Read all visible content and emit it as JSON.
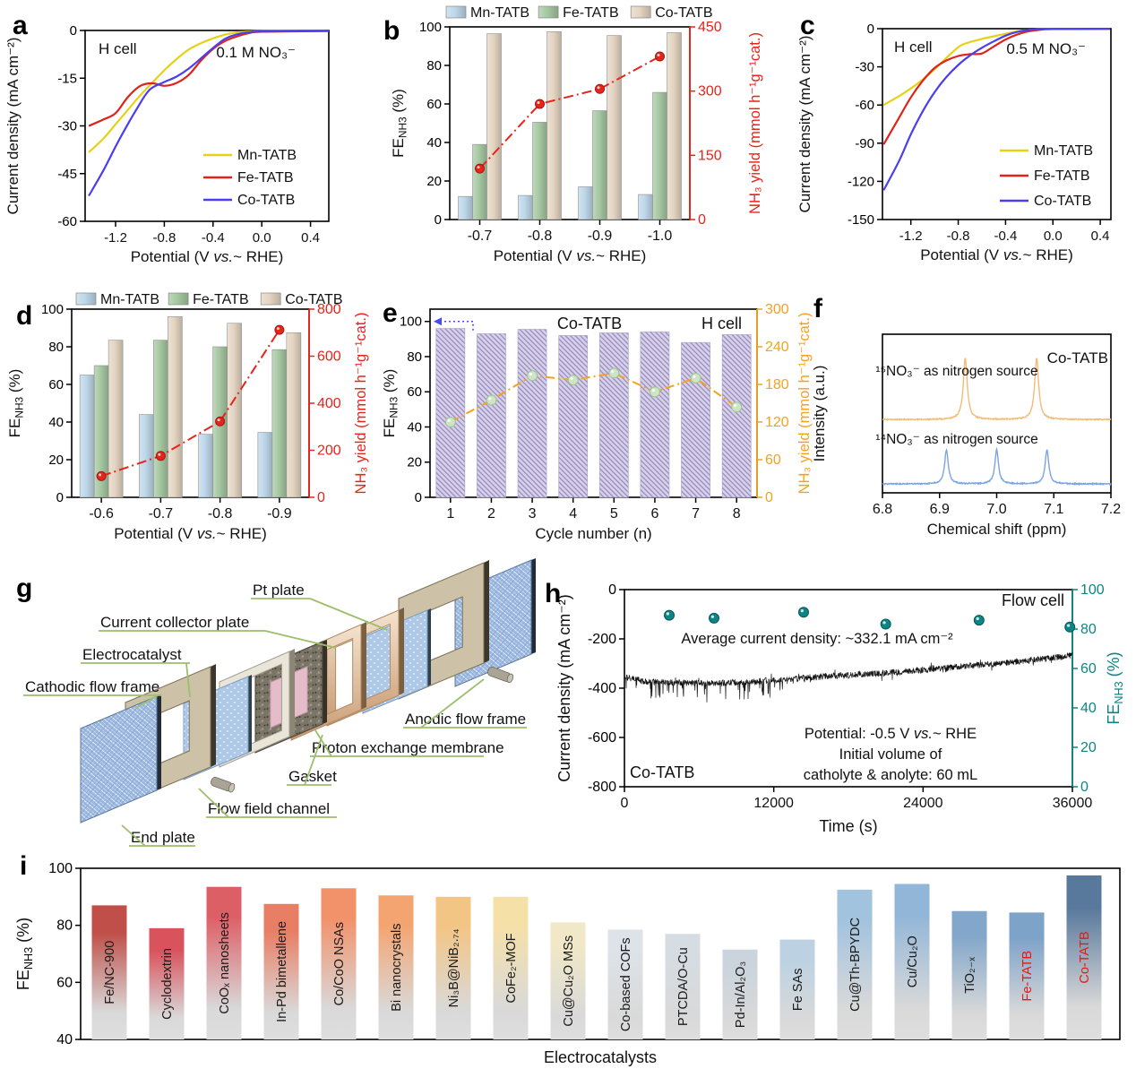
{
  "panels": {
    "a": {
      "label": "a"
    },
    "b": {
      "label": "b"
    },
    "c": {
      "label": "c"
    },
    "d": {
      "label": "d"
    },
    "e": {
      "label": "e"
    },
    "f": {
      "label": "f"
    },
    "g": {
      "label": "g"
    },
    "h": {
      "label": "h"
    },
    "i": {
      "label": "i"
    }
  },
  "colors": {
    "mn": "#e7d117",
    "fe": "#e02318",
    "co": "#4a3ff0",
    "bar_mn": "#bdd7e9",
    "bar_fe": "#a5c7a1",
    "bar_co": "#e4d4c1",
    "yield_red": "#e8231a",
    "cycle_bar": "#d8d2e8",
    "cycle_hatch": "#9d90c4",
    "cycle_line": "#f6a21c",
    "cycle_marker": "#cfe3c5",
    "cycle_arrow": "#4a4af0",
    "teal": "#0d8585",
    "nmr_15n": "#f2bc77",
    "nmr_14n": "#7aa3e8",
    "leader_green": "#9bbf6a",
    "label_red": "#e8190f"
  },
  "chart_data": [
    {
      "id": "a",
      "type": "line",
      "annotations": {
        "cell": "H cell",
        "electrolyte": "0.1 M NO₃⁻"
      },
      "xlabel": "Potential (V ~{vs.}~ RHE)",
      "ylabel": "Current density (mA cm⁻²)",
      "xlim": [
        -1.45,
        0.55
      ],
      "ylim": [
        -60,
        0
      ],
      "xticks": [
        -1.2,
        -0.8,
        -0.4,
        0,
        0.4
      ],
      "xtick_labels": [
        "-1.2",
        "-0.8",
        "-0.4",
        "0.0",
        "0.4"
      ],
      "yticks": [
        0,
        -15,
        -30,
        -45,
        -60
      ],
      "ytick_labels": [
        "0",
        "-15",
        "-30",
        "-45",
        "-60"
      ],
      "series": [
        {
          "name": "Mn-TATB",
          "color_key": "mn",
          "x": [
            -1.42,
            -1.3,
            -1.2,
            -1.1,
            -1.0,
            -0.9,
            -0.8,
            -0.7,
            -0.6,
            -0.5,
            -0.4,
            -0.3,
            -0.2,
            -0.1,
            0,
            0.55
          ],
          "y": [
            -38.3,
            -34,
            -29.5,
            -25,
            -20.5,
            -16.5,
            -12.5,
            -9,
            -6,
            -4,
            -2.5,
            -1.3,
            -0.6,
            -0.3,
            -0.2,
            -0.1
          ]
        },
        {
          "name": "Fe-TATB",
          "color_key": "fe",
          "x": [
            -1.42,
            -1.3,
            -1.2,
            -1.1,
            -1.0,
            -0.9,
            -0.8,
            -0.7,
            -0.6,
            -0.5,
            -0.4,
            -0.3,
            -0.2,
            -0.1,
            0,
            0.55
          ],
          "y": [
            -30,
            -28,
            -26,
            -21,
            -17.5,
            -16.6,
            -17.4,
            -16.5,
            -14,
            -9.5,
            -5.8,
            -3.3,
            -1.8,
            -0.8,
            -0.4,
            -0.2
          ]
        },
        {
          "name": "Co-TATB",
          "color_key": "co",
          "x": [
            -1.42,
            -1.3,
            -1.2,
            -1.1,
            -1.0,
            -0.95,
            -0.9,
            -0.8,
            -0.7,
            -0.6,
            -0.5,
            -0.4,
            -0.3,
            -0.2,
            -0.1,
            0,
            0.55
          ],
          "y": [
            -52,
            -44,
            -36.5,
            -29.5,
            -23,
            -20,
            -18,
            -16.2,
            -14.5,
            -12,
            -8.8,
            -5.5,
            -2.6,
            -1.2,
            -0.5,
            -0.3,
            -0.1
          ]
        }
      ]
    },
    {
      "id": "b",
      "type": "grouped-bar-line",
      "categories": [
        "-0.7",
        "-0.8",
        "-0.9",
        "-1.0"
      ],
      "xlabel": "Potential (V ~{vs.}~ RHE)",
      "ylabel_left": "FE_{NH3} (%)",
      "ylabel_right": "NH₃ yield (mmol h⁻¹g⁻¹cat.)",
      "ylim_left": [
        0,
        100
      ],
      "yticks_left": [
        "0",
        "20",
        "40",
        "60",
        "80",
        "100"
      ],
      "ylim_right": [
        0,
        450
      ],
      "yticks_right": [
        "0",
        "150",
        "300",
        "450"
      ],
      "legend": [
        "Mn-TATB",
        "Fe-TATB",
        "Co-TATB"
      ],
      "series": [
        {
          "name": "Mn-TATB",
          "color_key": "bar_mn",
          "values": [
            12,
            12.5,
            17,
            13
          ]
        },
        {
          "name": "Fe-TATB",
          "color_key": "bar_fe",
          "values": [
            39,
            50.5,
            56.5,
            66
          ]
        },
        {
          "name": "Co-TATB",
          "color_key": "bar_co",
          "values": [
            96.5,
            97.5,
            95.5,
            97
          ]
        }
      ],
      "yield_line": {
        "name": "NH₃ yield",
        "color_key": "yield_red",
        "values": [
          119,
          270,
          305,
          381
        ]
      }
    },
    {
      "id": "c",
      "type": "line",
      "annotations": {
        "cell": "H cell",
        "electrolyte": "0.5 M NO₃⁻"
      },
      "xlabel": "Potential (V ~{vs.}~ RHE)",
      "ylabel": "Current density (mA cm⁻²)",
      "xlim": [
        -1.44,
        0.49
      ],
      "ylim": [
        -150,
        0
      ],
      "xticks": [
        -1.2,
        -0.8,
        -0.4,
        0,
        0.4
      ],
      "xtick_labels": [
        "-1.2",
        "-0.8",
        "-0.4",
        "0.0",
        "0.4"
      ],
      "yticks": [
        0,
        -30,
        -60,
        -90,
        -120,
        -150
      ],
      "ytick_labels": [
        "0",
        "-30",
        "-60",
        "-90",
        "-120",
        "-150"
      ],
      "series": [
        {
          "name": "Mn-TATB",
          "color_key": "mn",
          "x": [
            -1.43,
            -1.3,
            -1.2,
            -1.1,
            -1.0,
            -0.9,
            -0.8,
            -0.75,
            -0.7,
            -0.6,
            -0.5,
            -0.4,
            -0.3,
            -0.2,
            -0.1,
            0,
            0.48
          ],
          "y": [
            -60,
            -53,
            -47,
            -40,
            -32,
            -23,
            -14.5,
            -12,
            -10.5,
            -8,
            -6,
            -4,
            -2,
            -1,
            -0.5,
            -0.3,
            -0.1
          ]
        },
        {
          "name": "Fe-TATB",
          "color_key": "fe",
          "x": [
            -1.43,
            -1.3,
            -1.2,
            -1.1,
            -1.0,
            -0.9,
            -0.8,
            -0.7,
            -0.6,
            -0.5,
            -0.4,
            -0.3,
            -0.2,
            -0.1,
            0,
            0.48
          ],
          "y": [
            -91,
            -70,
            -54,
            -41,
            -31,
            -25,
            -21.5,
            -20,
            -19.5,
            -14,
            -8.5,
            -4.5,
            -2,
            -0.8,
            -0.3,
            -0.1
          ]
        },
        {
          "name": "Co-TATB",
          "color_key": "co",
          "x": [
            -1.43,
            -1.3,
            -1.2,
            -1.1,
            -1.0,
            -0.9,
            -0.8,
            -0.7,
            -0.6,
            -0.5,
            -0.4,
            -0.3,
            -0.2,
            -0.1,
            0,
            0.48
          ],
          "y": [
            -127,
            -104,
            -83,
            -65,
            -50,
            -38,
            -28.5,
            -21,
            -15,
            -10,
            -5.5,
            -2.5,
            -1,
            -0.4,
            -0.2,
            -0.1
          ]
        }
      ]
    },
    {
      "id": "d",
      "type": "grouped-bar-line",
      "categories": [
        "-0.6",
        "-0.7",
        "-0.8",
        "-0.9"
      ],
      "xlabel": "Potential (V ~{vs.}~ RHE)",
      "ylabel_left": "FE_{NH3} (%)",
      "ylabel_right": "NH₃ yield (mmol h⁻¹g⁻¹cat.)",
      "ylim_left": [
        0,
        100
      ],
      "yticks_left": [
        "0",
        "20",
        "40",
        "60",
        "80",
        "100"
      ],
      "ylim_right": [
        0,
        800
      ],
      "yticks_right": [
        "0",
        "200",
        "400",
        "600",
        "800"
      ],
      "legend": [
        "Mn-TATB",
        "Fe-TATB",
        "Co-TATB"
      ],
      "series": [
        {
          "name": "Mn-TATB",
          "color_key": "bar_mn",
          "values": [
            65,
            44,
            33.5,
            34.5
          ]
        },
        {
          "name": "Fe-TATB",
          "color_key": "bar_fe",
          "values": [
            70,
            83.5,
            80,
            78.5
          ]
        },
        {
          "name": "Co-TATB",
          "color_key": "bar_co",
          "values": [
            83.5,
            96,
            92.5,
            87.5
          ]
        }
      ],
      "yield_line": {
        "name": "NH₃ yield",
        "color_key": "yield_red",
        "values": [
          90,
          176,
          323,
          712
        ]
      }
    },
    {
      "id": "e",
      "type": "cycle-bar-line",
      "annotations": {
        "catalyst": "Co-TATB",
        "cell": "H cell"
      },
      "categories": [
        "1",
        "2",
        "3",
        "4",
        "5",
        "6",
        "7",
        "8"
      ],
      "xlabel": "Cycle number (n)",
      "ylabel_left": "FE_{NH3} (%)",
      "ylabel_right": "NH₃ yield (mmol h⁻¹g⁻¹cat.)",
      "ylim_left": [
        0,
        107
      ],
      "yticks_left": [
        "0",
        "20",
        "40",
        "60",
        "80",
        "100"
      ],
      "ytick_vals_left": [
        0,
        20,
        40,
        60,
        80,
        100
      ],
      "ylim_right": [
        0,
        300
      ],
      "yticks_right": [
        "0",
        "60",
        "120",
        "180",
        "240",
        "300"
      ],
      "ytick_vals_right": [
        0,
        60,
        120,
        180,
        240,
        300
      ],
      "fe_values": [
        96,
        93,
        95.5,
        92,
        93.5,
        94,
        88,
        92.5
      ],
      "yield_values": [
        120,
        155,
        194,
        187,
        198,
        168,
        190,
        144
      ]
    },
    {
      "id": "f",
      "type": "nmr",
      "annotation": "Co-TATB",
      "xlabel": "Chemical shift (ppm)",
      "ylabel": "Intensity (a.u.)",
      "xlim": [
        6.8,
        7.2
      ],
      "xticks": [
        6.8,
        6.9,
        7.0,
        7.1,
        7.2
      ],
      "xtick_labels": [
        "6.8",
        "6.9",
        "7.0",
        "7.1",
        "7.2"
      ],
      "traces": [
        {
          "label": "¹⁵NO₃⁻ as nitrogen source",
          "color_key": "nmr_15n",
          "peaks": [
            6.945,
            7.07
          ],
          "baseline_frac": 0.462,
          "amp_frac": 0.385,
          "peak_width": 0.0042
        },
        {
          "label": "¹⁴NO₃⁻ as nitrogen source",
          "color_key": "nmr_14n",
          "peaks": [
            6.912,
            7.0,
            7.088
          ],
          "baseline_frac": 0.056,
          "amp_frac": 0.215,
          "peak_width": 0.0038
        }
      ]
    },
    {
      "id": "g",
      "type": "diagram",
      "labels": [
        "Pt plate",
        "Current collector plate",
        "Electrocatalyst",
        "Cathodic flow frame",
        "Anodic flow frame",
        "Proton exchange membrane",
        "Gasket",
        "Flow field channel",
        "End plate"
      ]
    },
    {
      "id": "h",
      "type": "stability",
      "annotations": {
        "cell": "Flow cell",
        "catalyst": "Co-TATB",
        "avg_current": "Average current density: ~332.1 mA cm⁻²",
        "potential": "Potential: -0.5 V ~{vs.}~ RHE",
        "volume_line1": "Initial volume of",
        "volume_line2": "catholyte & anolyte: 60 mL"
      },
      "xlabel": "Time (s)",
      "ylabel_left": "Current density (mA cm⁻²)",
      "ylabel_right": "FE_{NH3} (%)",
      "xlim": [
        0,
        36000
      ],
      "xticks": [
        0,
        12000,
        24000,
        36000
      ],
      "xtick_labels": [
        "0",
        "12000",
        "24000",
        "36000"
      ],
      "ylim_left": [
        -800,
        0
      ],
      "yticks_left": [
        "0",
        "-200",
        "-400",
        "-600",
        "-800"
      ],
      "ytick_vals_left": [
        0,
        -200,
        -400,
        -600,
        -800
      ],
      "ylim_right": [
        0,
        100
      ],
      "yticks_right": [
        "0",
        "20",
        "40",
        "60",
        "80",
        "100"
      ],
      "ytick_vals_right": [
        0,
        20,
        40,
        60,
        80,
        100
      ],
      "current_trend": [
        [
          0,
          -352
        ],
        [
          1500,
          -372
        ],
        [
          4000,
          -378
        ],
        [
          8000,
          -380
        ],
        [
          12000,
          -368
        ],
        [
          16000,
          -352
        ],
        [
          20000,
          -342
        ],
        [
          24000,
          -326
        ],
        [
          28000,
          -308
        ],
        [
          32000,
          -290
        ],
        [
          36000,
          -268
        ]
      ],
      "noise_amp": 13,
      "fe_points": {
        "x": [
          3600,
          7200,
          14400,
          21000,
          28500,
          35800
        ],
        "y": [
          87,
          85.5,
          88.5,
          82.5,
          84.5,
          81
        ]
      }
    },
    {
      "id": "i",
      "type": "bar",
      "xlabel": "Electrocatalysts",
      "ylabel": "FE_{NH3} (%)",
      "ylim": [
        40,
        100
      ],
      "yticks": [
        "40",
        "60",
        "80",
        "100"
      ],
      "ytick_vals": [
        40,
        60,
        80,
        100
      ],
      "fade_color": "#d9d9d9",
      "bars": [
        {
          "label": "Fe/NC-900",
          "value": 87,
          "top_color": "#bf4f48"
        },
        {
          "label": "Cyclodextrin",
          "value": 79,
          "top_color": "#d9535c"
        },
        {
          "label": "CoOₓ nanosheets",
          "value": 93.5,
          "top_color": "#dd5f66"
        },
        {
          "label": "In-Pd bimetallene",
          "value": 87.5,
          "top_color": "#e87e64"
        },
        {
          "label": "Co/CoO NSAs",
          "value": 93,
          "top_color": "#f2926b"
        },
        {
          "label": "Bi nanocrystals",
          "value": 90.5,
          "top_color": "#f4a470"
        },
        {
          "label": "Ni₃B@NiB₂.₇₄",
          "value": 90,
          "top_color": "#f3c584"
        },
        {
          "label": "CoFe₂-MOF",
          "value": 90,
          "top_color": "#f5e0a8"
        },
        {
          "label": "Cu@Cu₂O MSs",
          "value": 81,
          "top_color": "#f0e8c6"
        },
        {
          "label": "Co-based COFs",
          "value": 78.5,
          "top_color": "#dde3e8"
        },
        {
          "label": "PTCDA/O-Cu",
          "value": 77,
          "top_color": "#d5dce2"
        },
        {
          "label": "Pd-In/Al₂O₃",
          "value": 71.5,
          "top_color": "#cbd4dc"
        },
        {
          "label": "Fe SAs",
          "value": 75,
          "top_color": "#bcd2e2"
        },
        {
          "label": "Cu@Th-BPYDC",
          "value": 92.5,
          "top_color": "#a2c3de"
        },
        {
          "label": "Cu/Cu₂O",
          "value": 94.5,
          "top_color": "#92b6d8"
        },
        {
          "label": "TiO₂₋ₓ",
          "value": 85,
          "top_color": "#83a7ca"
        },
        {
          "label": "Fe-TATB",
          "value": 84.5,
          "top_color": "#7ea3c8",
          "label_color": "#e8190f"
        },
        {
          "label": "Co-TATB",
          "value": 97.5,
          "top_color": "#59799c",
          "label_color": "#e8190f"
        }
      ]
    }
  ]
}
